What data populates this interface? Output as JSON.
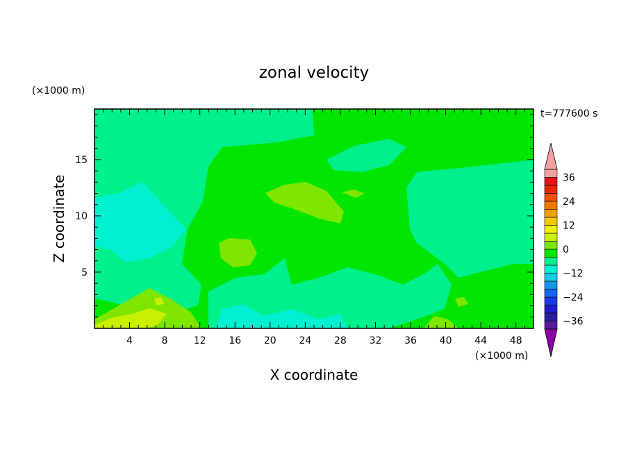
{
  "chart_data": {
    "type": "heatmap",
    "title": "zonal velocity",
    "xlabel": "X coordinate",
    "ylabel": "Z coordinate",
    "x_unit_label": "(×1000 m)",
    "y_unit_label": "(×1000 m)",
    "time_label": "t=777600 s",
    "xlim": [
      0,
      50
    ],
    "ylim": [
      0,
      19.5
    ],
    "x_ticks": [
      4,
      8,
      12,
      16,
      20,
      24,
      28,
      32,
      36,
      40,
      44,
      48
    ],
    "y_ticks": [
      5,
      10,
      15
    ],
    "colorbar": {
      "levels": [
        -40,
        -36,
        -32,
        -28,
        -24,
        -20,
        -16,
        -12,
        -8,
        -4,
        0,
        4,
        8,
        12,
        16,
        20,
        24,
        28,
        32,
        36,
        40
      ],
      "tick_labels": [
        "36",
        "24",
        "12",
        "0",
        "−12",
        "−24",
        "−36"
      ],
      "tick_values": [
        36,
        24,
        12,
        0,
        -12,
        -24,
        -36
      ],
      "colors": [
        "#8c00a8",
        "#5a1aa0",
        "#2a1f9e",
        "#1c1cc8",
        "#1a3ae6",
        "#1468f0",
        "#1496ec",
        "#14c8e6",
        "#00f0d0",
        "#00f08c",
        "#00e600",
        "#7ee600",
        "#c8f000",
        "#f0f000",
        "#f0c800",
        "#f0a000",
        "#f07800",
        "#f05000",
        "#e62800",
        "#e61414",
        "#f0a0a0"
      ],
      "extend": "both"
    },
    "field_description_values": {
      "background": 2,
      "features": [
        {
          "value": -2,
          "region": "upper-left band"
        },
        {
          "value": -6,
          "region": "left middle"
        },
        {
          "value": -2,
          "region": "right middle"
        },
        {
          "value": -2,
          "region": "lower middle"
        },
        {
          "value": -6,
          "region": "bottom center"
        },
        {
          "value": 6,
          "region": "center"
        },
        {
          "value": 6,
          "region": "bottom-left"
        },
        {
          "value": 10,
          "region": "bottom-left"
        }
      ]
    }
  }
}
